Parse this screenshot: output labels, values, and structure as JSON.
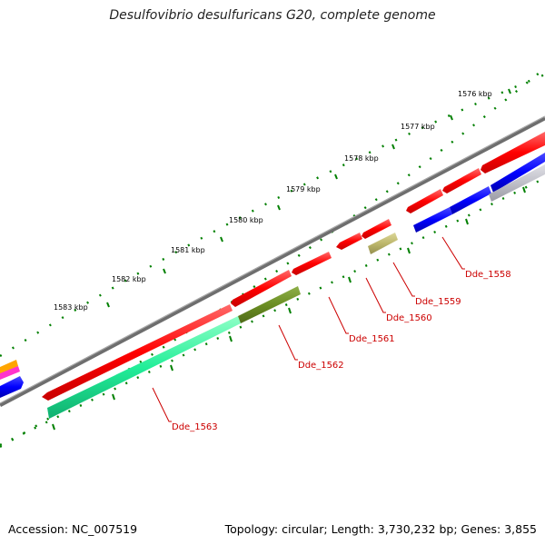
{
  "title": "Desulfovibrio desulfuricans G20, complete genome",
  "footer": {
    "accession": "Accession: NC_007519",
    "summary": "Topology: circular; Length: 3,730,232 bp; Genes: 3,855"
  },
  "scale_labels": [
    "1576 kbp",
    "1577 kbp",
    "1578 kbp",
    "1579 kbp",
    "1580 kbp",
    "1581 kbp",
    "1582 kbp",
    "1583 kbp"
  ],
  "gene_labels": [
    "Dde_1558",
    "Dde_1559",
    "Dde_1560",
    "Dde_1561",
    "Dde_1562",
    "Dde_1563"
  ],
  "colors": {
    "backbone": "#7a7a7a",
    "forward_cds": "#ff0000",
    "reverse_cds": "#0000ff",
    "tick": "#008000",
    "label": "#cc0000",
    "pseudo_gray": "#bfbfc8",
    "olive": "#6b8e23",
    "khaki": "#bdb76b",
    "teal": "#00e68a",
    "orange": "#ffa500",
    "magenta": "#ff33cc"
  }
}
